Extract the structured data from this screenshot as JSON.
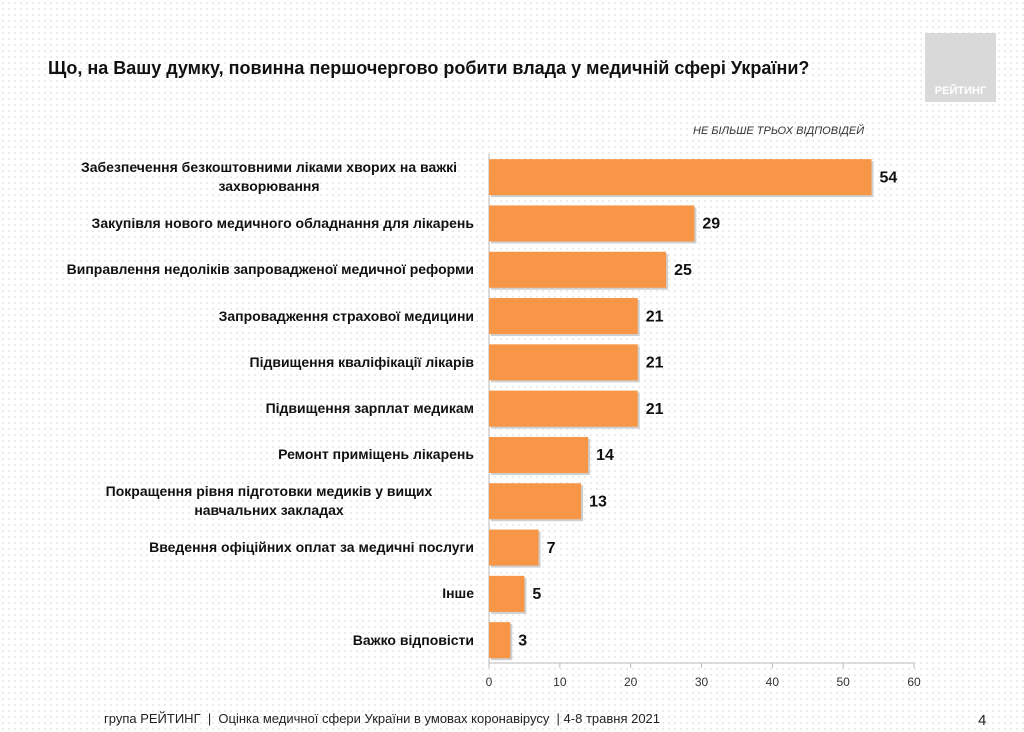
{
  "chart_data": {
    "type": "bar",
    "orientation": "horizontal",
    "title": "Що, на Вашу думку, повинна першочергово робити влада у медичній сфері України?",
    "subtitle": "НЕ БІЛЬШЕ ТРЬОХ ВІДПОВІДЕЙ",
    "categories": [
      "Забезпечення безкоштовними ліками хворих на важкі захворювання",
      "Закупівля нового медичного обладнання для лікарень",
      "Виправлення недоліків запровадженої медичної реформи",
      "Запровадження страхової медицини",
      "Підвищення кваліфікації лікарів",
      "Підвищення зарплат медикам",
      "Ремонт приміщень лікарень",
      "Покращення рівня підготовки медиків у вищих навчальних закладах",
      "Введення офіційних оплат за медичні послуги",
      "Інше",
      "Важко відповісти"
    ],
    "values": [
      54,
      29,
      25,
      21,
      21,
      21,
      14,
      13,
      7,
      5,
      3
    ],
    "color": "#f79646",
    "xlim": [
      0,
      60
    ],
    "xticks": [
      0,
      10,
      20,
      30,
      40,
      50,
      60
    ],
    "grid": false
  },
  "logo": "РЕЙТИНГ",
  "footer": "група РЕЙТИНГ  |  Оцінка медичної сфери України в умовах коронавірусу  | 4-8 травня 2021",
  "page_number": "4"
}
